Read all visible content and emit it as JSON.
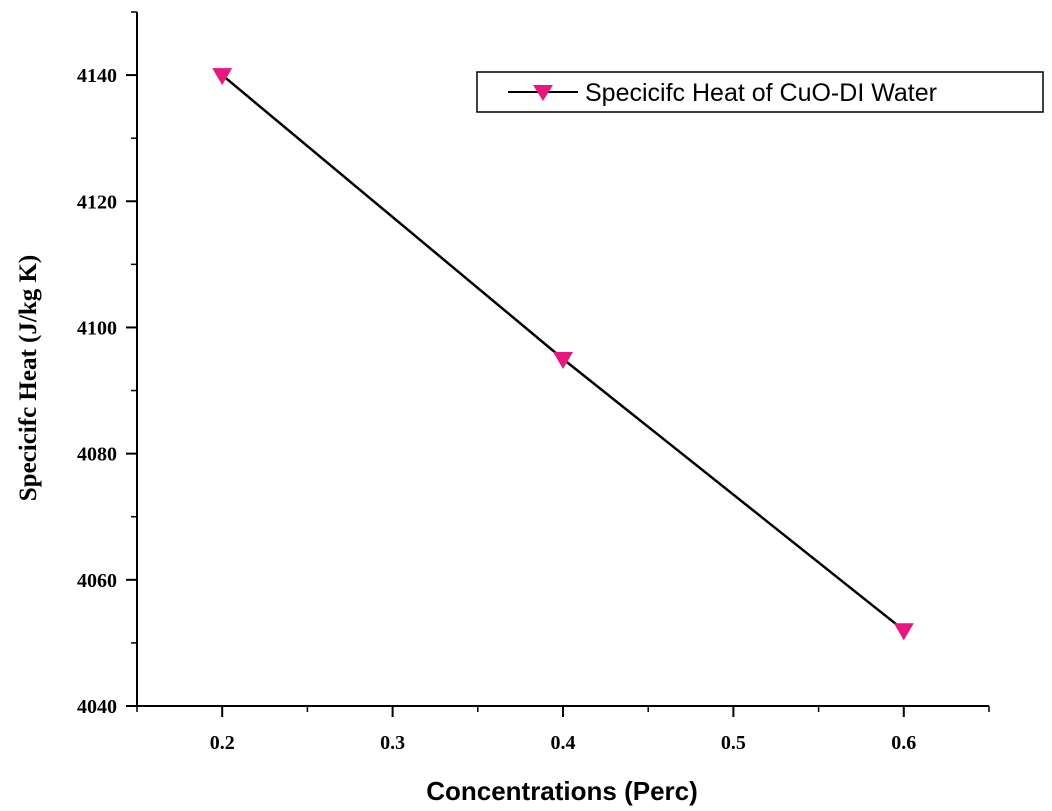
{
  "chart_data": {
    "type": "line",
    "xlabel": "Concentrations (Perc)",
    "ylabel": "Specicifc Heat (J/kg K)",
    "xlim": [
      0.15,
      0.65
    ],
    "ylim": [
      4040,
      4150
    ],
    "x_ticks": [
      0.2,
      0.3,
      0.4,
      0.5,
      0.6
    ],
    "x_tick_labels": [
      "0.2",
      "0.3",
      "0.4",
      "0.5",
      "0.6"
    ],
    "y_ticks": [
      4040,
      4060,
      4080,
      4100,
      4120,
      4140
    ],
    "y_tick_labels": [
      "4040",
      "4060",
      "4080",
      "4100",
      "4120",
      "4140"
    ],
    "grid": false,
    "legend_position": "top-right",
    "series": [
      {
        "name": "Specicifc Heat of CuO-DI Water",
        "x": [
          0.2,
          0.4,
          0.6
        ],
        "y": [
          4140,
          4095,
          4052
        ],
        "line_color": "#000000",
        "marker": "triangle-down",
        "marker_color": "#e8177d"
      }
    ]
  }
}
